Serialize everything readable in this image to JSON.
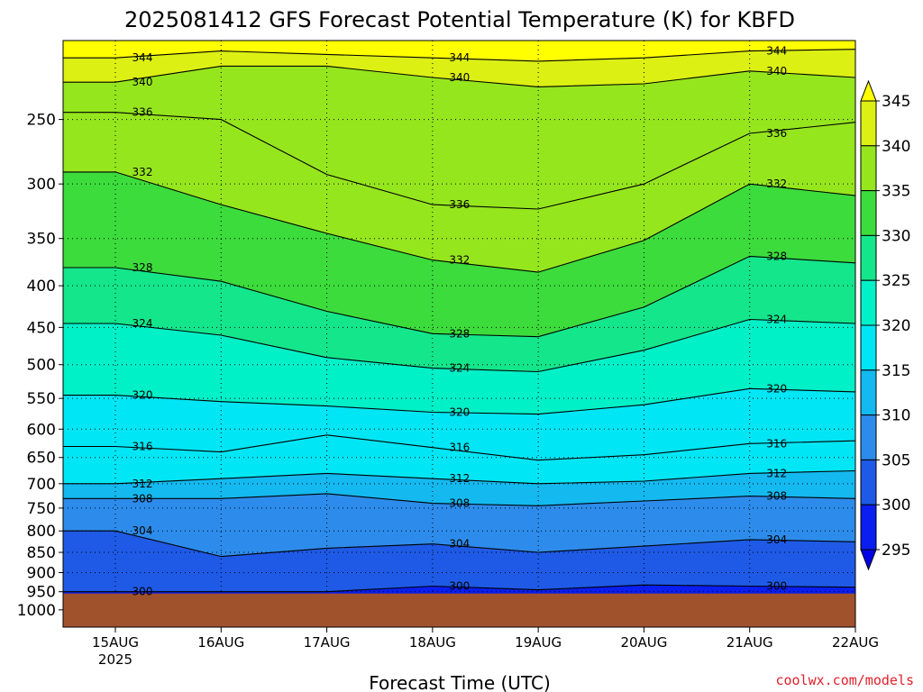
{
  "chart_data": {
    "type": "heatmap",
    "title": "2025081412 GFS Forecast Potential Temperature (K) for KBFD",
    "xlabel": "Forecast Time (UTC)",
    "ylabel": "",
    "credit": "coolwx.com/models",
    "colorbar_units": "K",
    "x_range": [
      "2025-08-14T12Z",
      "2025-08-22T00Z"
    ],
    "x_ticks": [
      {
        "label": "15AUG",
        "sublabel": "2025",
        "value": "2025-08-15T00Z"
      },
      {
        "label": "16AUG",
        "value": "2025-08-16T00Z"
      },
      {
        "label": "17AUG",
        "value": "2025-08-17T00Z"
      },
      {
        "label": "18AUG",
        "value": "2025-08-18T00Z"
      },
      {
        "label": "19AUG",
        "value": "2025-08-19T00Z"
      },
      {
        "label": "20AUG",
        "value": "2025-08-20T00Z"
      },
      {
        "label": "21AUG",
        "value": "2025-08-21T00Z"
      },
      {
        "label": "22AUG",
        "value": "2025-08-22T00Z"
      }
    ],
    "y_scale": "log",
    "y_range_hPa": [
      1050,
      200
    ],
    "y_ticks": [
      "250",
      "300",
      "350",
      "400",
      "450",
      "500",
      "550",
      "600",
      "650",
      "700",
      "750",
      "800",
      "850",
      "900",
      "950",
      "1000"
    ],
    "surface_pressure_hPa": 950,
    "colorbar": {
      "levels": [
        295,
        300,
        305,
        310,
        315,
        320,
        325,
        330,
        335,
        340,
        345
      ],
      "level_labels": [
        "295",
        "300",
        "305",
        "310",
        "315",
        "320",
        "325",
        "330",
        "335",
        "340",
        "345"
      ],
      "colors": [
        "#0000e6",
        "#0a1ef0",
        "#1e5ae6",
        "#2d8ceb",
        "#14b9f0",
        "#00e6f5",
        "#00f0c8",
        "#14e68c",
        "#3cdc3c",
        "#96e61e",
        "#dcf014",
        "#ffff00"
      ],
      "extend": "both"
    },
    "contour_interval_K": 2,
    "series": [
      {
        "name": "344",
        "values": [
          [
            0,
            210
          ],
          [
            1,
            206
          ],
          [
            2,
            208
          ],
          [
            3,
            210
          ],
          [
            4,
            212
          ],
          [
            5,
            210
          ],
          [
            6,
            206
          ],
          [
            7,
            205
          ]
        ]
      },
      {
        "name": "340",
        "values": [
          [
            0,
            225
          ],
          [
            1,
            215
          ],
          [
            2,
            215
          ],
          [
            3,
            222
          ],
          [
            4,
            228
          ],
          [
            5,
            226
          ],
          [
            6,
            218
          ],
          [
            7,
            222
          ]
        ]
      },
      {
        "name": "336",
        "values": [
          [
            0,
            245
          ],
          [
            1,
            250
          ],
          [
            2,
            292
          ],
          [
            3,
            318
          ],
          [
            4,
            322
          ],
          [
            5,
            300
          ],
          [
            6,
            260
          ],
          [
            7,
            252
          ]
        ]
      },
      {
        "name": "332",
        "values": [
          [
            0,
            290
          ],
          [
            1,
            318
          ],
          [
            2,
            345
          ],
          [
            3,
            372
          ],
          [
            4,
            385
          ],
          [
            5,
            352
          ],
          [
            6,
            300
          ],
          [
            7,
            310
          ]
        ]
      },
      {
        "name": "328",
        "values": [
          [
            0,
            380
          ],
          [
            1,
            395
          ],
          [
            2,
            430
          ],
          [
            3,
            458
          ],
          [
            4,
            462
          ],
          [
            5,
            425
          ],
          [
            6,
            368
          ],
          [
            7,
            375
          ]
        ]
      },
      {
        "name": "324",
        "values": [
          [
            0,
            445
          ],
          [
            1,
            460
          ],
          [
            2,
            490
          ],
          [
            3,
            505
          ],
          [
            4,
            510
          ],
          [
            5,
            480
          ],
          [
            6,
            440
          ],
          [
            7,
            445
          ]
        ]
      },
      {
        "name": "320",
        "values": [
          [
            0,
            545
          ],
          [
            1,
            555
          ],
          [
            2,
            562
          ],
          [
            3,
            572
          ],
          [
            4,
            575
          ],
          [
            5,
            560
          ],
          [
            6,
            535
          ],
          [
            7,
            540
          ]
        ]
      },
      {
        "name": "316",
        "values": [
          [
            0,
            630
          ],
          [
            1,
            640
          ],
          [
            2,
            610
          ],
          [
            3,
            632
          ],
          [
            4,
            655
          ],
          [
            5,
            645
          ],
          [
            6,
            625
          ],
          [
            7,
            620
          ]
        ]
      },
      {
        "name": "312",
        "values": [
          [
            0,
            700
          ],
          [
            1,
            690
          ],
          [
            2,
            680
          ],
          [
            3,
            690
          ],
          [
            4,
            700
          ],
          [
            5,
            695
          ],
          [
            6,
            680
          ],
          [
            7,
            675
          ]
        ]
      },
      {
        "name": "308",
        "values": [
          [
            0,
            730
          ],
          [
            1,
            730
          ],
          [
            2,
            720
          ],
          [
            3,
            740
          ],
          [
            4,
            745
          ],
          [
            5,
            735
          ],
          [
            6,
            725
          ],
          [
            7,
            730
          ]
        ]
      },
      {
        "name": "304",
        "values": [
          [
            0,
            800
          ],
          [
            1,
            860
          ],
          [
            2,
            840
          ],
          [
            3,
            830
          ],
          [
            4,
            850
          ],
          [
            5,
            835
          ],
          [
            6,
            820
          ],
          [
            7,
            825
          ]
        ]
      },
      {
        "name": "300",
        "values": [
          [
            0,
            950
          ],
          [
            1,
            950
          ],
          [
            2,
            950
          ],
          [
            3,
            935
          ],
          [
            4,
            945
          ],
          [
            5,
            932
          ],
          [
            6,
            935
          ],
          [
            7,
            938
          ]
        ]
      }
    ],
    "contour_labels": [
      "344",
      "340",
      "336",
      "332",
      "328",
      "324",
      "320",
      "316",
      "312",
      "308",
      "304",
      "300"
    ],
    "grid": true,
    "legend": "right"
  }
}
